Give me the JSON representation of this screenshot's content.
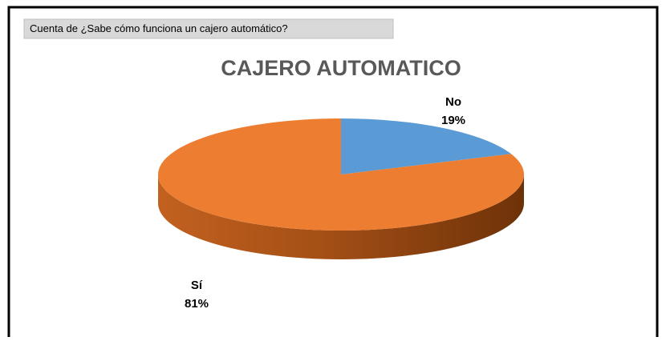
{
  "chart_data": {
    "type": "pie",
    "pivot_field": "Cuenta de ¿Sabe cómo funciona un cajero automático?",
    "title": "CAJERO AUTOMATICO",
    "categories": [
      "No",
      "Sí"
    ],
    "values": [
      19,
      81
    ],
    "value_labels": [
      "19%",
      "81%"
    ],
    "colors": [
      "#5b9bd5",
      "#ed7d31"
    ]
  }
}
